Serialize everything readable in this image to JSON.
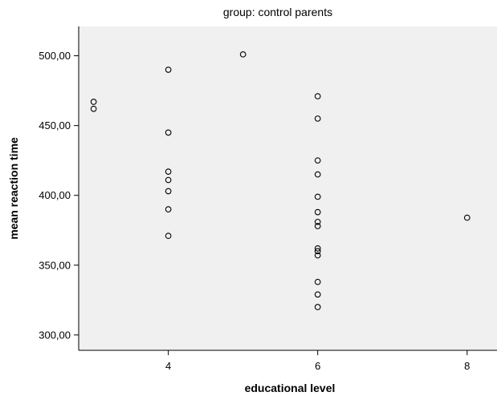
{
  "chart_data": {
    "type": "scatter",
    "title": "group: control parents",
    "xlabel": "educational level",
    "ylabel": "mean reaction time",
    "xlim": [
      2.8,
      8.4
    ],
    "ylim": [
      289,
      521
    ],
    "xticks": [
      4,
      6,
      8
    ],
    "xtick_labels": [
      "4",
      "6",
      "8"
    ],
    "yticks": [
      300,
      350,
      400,
      450,
      500
    ],
    "ytick_labels": [
      "300,00",
      "350,00",
      "400,00",
      "450,00",
      "500,00"
    ],
    "grid": false,
    "legend": "none",
    "marker": "hollow-circle",
    "colors": {
      "plot_bg": "#f0f0f0",
      "marker": "#000000",
      "axis": "#000000"
    },
    "points": [
      {
        "x": 3,
        "y": 467
      },
      {
        "x": 3,
        "y": 462
      },
      {
        "x": 4,
        "y": 490
      },
      {
        "x": 4,
        "y": 445
      },
      {
        "x": 4,
        "y": 417
      },
      {
        "x": 4,
        "y": 411
      },
      {
        "x": 4,
        "y": 403
      },
      {
        "x": 4,
        "y": 390
      },
      {
        "x": 4,
        "y": 371
      },
      {
        "x": 5,
        "y": 501
      },
      {
        "x": 6,
        "y": 471
      },
      {
        "x": 6,
        "y": 455
      },
      {
        "x": 6,
        "y": 425
      },
      {
        "x": 6,
        "y": 415
      },
      {
        "x": 6,
        "y": 399
      },
      {
        "x": 6,
        "y": 388
      },
      {
        "x": 6,
        "y": 381
      },
      {
        "x": 6,
        "y": 378
      },
      {
        "x": 6,
        "y": 362
      },
      {
        "x": 6,
        "y": 360
      },
      {
        "x": 6,
        "y": 357
      },
      {
        "x": 6,
        "y": 338
      },
      {
        "x": 6,
        "y": 329
      },
      {
        "x": 6,
        "y": 320
      },
      {
        "x": 8,
        "y": 384
      }
    ]
  }
}
